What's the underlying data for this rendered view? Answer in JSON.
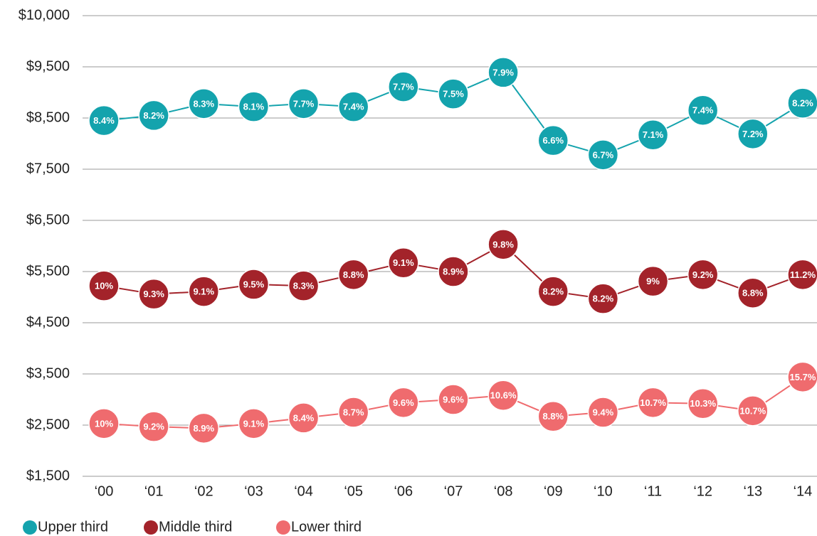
{
  "chart_data": {
    "type": "line",
    "categories": [
      "‘00",
      "‘01",
      "‘02",
      "‘03",
      "‘04",
      "‘05",
      "‘06",
      "‘07",
      "‘08",
      "‘09",
      "‘10",
      "‘11",
      "‘12",
      "‘13",
      "‘14"
    ],
    "series": [
      {
        "name": "Upper third",
        "color": "#14a3ad",
        "values": [
          8450,
          8550,
          8780,
          8720,
          8780,
          8720,
          9110,
          8970,
          9390,
          8060,
          7780,
          8170,
          8650,
          8190,
          8790
        ],
        "labels": [
          "8.4%",
          "8.2%",
          "8.3%",
          "8.1%",
          "7.7%",
          "7.4%",
          "7.7%",
          "7.5%",
          "7.9%",
          "6.6%",
          "6.7%",
          "7.1%",
          "7.4%",
          "7.2%",
          "8.2%"
        ]
      },
      {
        "name": "Middle third",
        "color": "#a3232a",
        "values": [
          5220,
          5060,
          5110,
          5250,
          5220,
          5440,
          5670,
          5500,
          6030,
          5110,
          4970,
          5310,
          5440,
          5080,
          5440
        ],
        "labels": [
          "10%",
          "9.3%",
          "9.1%",
          "9.5%",
          "8.3%",
          "8.8%",
          "9.1%",
          "8.9%",
          "9.8%",
          "8.2%",
          "8.2%",
          "9%",
          "9.2%",
          "8.8%",
          "11.2%"
        ]
      },
      {
        "name": "Lower third",
        "color": "#ef6b6e",
        "values": [
          2530,
          2470,
          2440,
          2530,
          2640,
          2750,
          2940,
          3000,
          3080,
          2670,
          2750,
          2940,
          2920,
          2780,
          3440
        ],
        "labels": [
          "10%",
          "9.2%",
          "8.9%",
          "9.1%",
          "8.4%",
          "8.7%",
          "9.6%",
          "9.6%",
          "10.6%",
          "8.8%",
          "9.4%",
          "10.7%",
          "10.3%",
          "10.7%",
          "15.7%"
        ]
      }
    ],
    "ylim": [
      1500,
      10000
    ],
    "yticks": [
      {
        "value": 1500,
        "label": "$1,500"
      },
      {
        "value": 2500,
        "label": "$2,500"
      },
      {
        "value": 3500,
        "label": "$3,500"
      },
      {
        "value": 4500,
        "label": "$4,500"
      },
      {
        "value": 5500,
        "label": "$5,500"
      },
      {
        "value": 6500,
        "label": "$6,500"
      },
      {
        "value": 7500,
        "label": "$7,500"
      },
      {
        "value": 8500,
        "label": "$8,500"
      },
      {
        "value": 9500,
        "label": "$9,500"
      },
      {
        "value": 10000,
        "label": "$10,000"
      }
    ],
    "grid": true
  }
}
